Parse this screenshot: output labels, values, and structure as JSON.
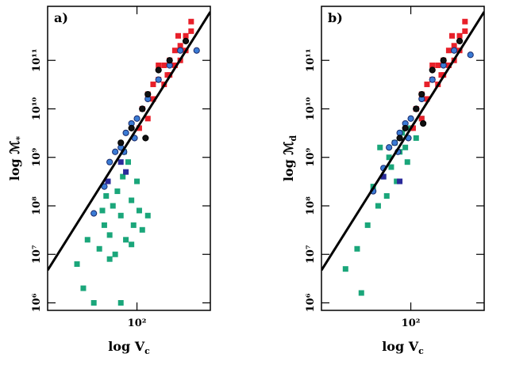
{
  "chart_data": [
    {
      "type": "scatter",
      "panel_label": "a)",
      "xlabel": "log V",
      "xlabel_subscript": "c",
      "ylabel": "log ℳ",
      "ylabel_subscript": "*",
      "xscale": "log",
      "yscale": "log",
      "xlim": [
        15,
        475
      ],
      "ylim": [
        700000,
        1300000000000
      ],
      "xticks": [
        {
          "value": 100,
          "label": "10²"
        }
      ],
      "yticks": [
        {
          "value": 1000000,
          "label": "10⁶"
        },
        {
          "value": 10000000,
          "label": "10⁷"
        },
        {
          "value": 100000000,
          "label": "10⁸"
        },
        {
          "value": 1000000000,
          "label": "10⁹"
        },
        {
          "value": 10000000000,
          "label": "10¹⁰"
        },
        {
          "value": 100000000000,
          "label": "10¹¹"
        }
      ],
      "fit_line": {
        "x": [
          15,
          475
        ],
        "y": [
          4700000,
          1000000000000
        ],
        "color": "#000000"
      },
      "series": [
        {
          "marker": "square",
          "color": "#1aa67a",
          "edgecolor": "#1aa67a",
          "x": [
            28,
            32,
            35,
            40,
            45,
            50,
            52,
            56,
            60,
            63,
            66,
            71,
            74,
            79,
            83,
            89,
            93,
            100,
            105,
            112,
            126,
            76,
            56,
            48,
            71,
            89
          ],
          "y": [
            6300000,
            2000000,
            20000000,
            1000000,
            13000000,
            40000000,
            160000000,
            25000000,
            100000000,
            10000000,
            200000000,
            63000000,
            400000000,
            20000000,
            800000000,
            130000000,
            40000000,
            320000000,
            80000000,
            32000000,
            63000000,
            1300000000,
            8000000,
            80000000,
            1000000,
            16000000
          ]
        },
        {
          "marker": "square",
          "color": "#e8202a",
          "edgecolor": "#e8202a",
          "x": [
            112,
            126,
            141,
            158,
            178,
            200,
            224,
            251,
            282,
            316,
            158,
            200,
            224,
            251,
            178,
            141,
            126,
            282,
            240,
            316,
            105,
            191
          ],
          "y": [
            10000000000,
            20000000000,
            32000000000,
            40000000000,
            79000000000,
            100000000000,
            160000000000,
            200000000000,
            320000000000,
            400000000000,
            79000000000,
            50000000000,
            79000000000,
            100000000000,
            32000000000,
            16000000000,
            6300000000,
            160000000000,
            320000000000,
            630000000000,
            4000000000,
            50000000000
          ]
        },
        {
          "marker": "circle",
          "color": "#3a7bd5",
          "edgecolor": "#1a2a6a",
          "x": [
            40,
            50,
            56,
            63,
            71,
            79,
            89,
            100,
            95,
            112,
            158,
            200,
            251,
            355,
            76,
            126
          ],
          "y": [
            70000000,
            250000000,
            800000000,
            1300000000,
            1600000000,
            3200000000,
            5000000000,
            6300000000,
            2500000000,
            10000000000,
            40000000000,
            79000000000,
            160000000000,
            160000000000,
            1300000000,
            16000000000
          ]
        },
        {
          "marker": "circle",
          "color": "#111111",
          "edgecolor": "#000000",
          "x": [
            71,
            89,
            112,
            126,
            158,
            200,
            282,
            120
          ],
          "y": [
            2000000000,
            4000000000,
            10000000000,
            20000000000,
            63000000000,
            100000000000,
            250000000000,
            2500000000
          ]
        },
        {
          "marker": "square",
          "color": "#2a2a9a",
          "edgecolor": "#2a2a9a",
          "x": [
            54,
            71,
            79
          ],
          "y": [
            320000000,
            800000000,
            500000000
          ]
        }
      ]
    },
    {
      "type": "scatter",
      "panel_label": "b)",
      "xlabel": "log V",
      "xlabel_subscript": "c",
      "ylabel": "log ℳ",
      "ylabel_subscript": "d",
      "xscale": "log",
      "yscale": "log",
      "xlim": [
        15,
        475
      ],
      "ylim": [
        700000,
        1300000000000
      ],
      "xticks": [
        {
          "value": 100,
          "label": "10²"
        }
      ],
      "yticks": [
        {
          "value": 1000000,
          "label": "10⁶"
        },
        {
          "value": 10000000,
          "label": "10⁷"
        },
        {
          "value": 100000000,
          "label": "10⁸"
        },
        {
          "value": 1000000000,
          "label": "10⁹"
        },
        {
          "value": 10000000000,
          "label": "10¹⁰"
        },
        {
          "value": 100000000000,
          "label": "10¹¹"
        }
      ],
      "fit_line": {
        "x": [
          15,
          475
        ],
        "y": [
          4700000,
          1000000000000
        ],
        "color": "#000000"
      },
      "series": [
        {
          "marker": "square",
          "color": "#1aa67a",
          "edgecolor": "#1aa67a",
          "x": [
            25,
            32,
            40,
            45,
            50,
            56,
            60,
            63,
            66,
            71,
            74,
            79,
            83,
            89,
            93,
            100,
            112,
            35,
            52,
            126
          ],
          "y": [
            5000000,
            13000000,
            40000000,
            250000000,
            100000000,
            400000000,
            160000000,
            1000000000,
            630000000,
            2000000000,
            320000000,
            1300000000,
            3200000000,
            1600000000,
            800000000,
            4000000000,
            2500000000,
            1600000,
            1600000000,
            6300000000
          ]
        },
        {
          "marker": "square",
          "color": "#e8202a",
          "edgecolor": "#e8202a",
          "x": [
            112,
            126,
            141,
            158,
            178,
            200,
            224,
            251,
            282,
            316,
            158,
            200,
            224,
            251,
            178,
            141,
            126,
            282,
            240,
            316,
            105,
            191
          ],
          "y": [
            10000000000,
            20000000000,
            32000000000,
            40000000000,
            79000000000,
            100000000000,
            160000000000,
            200000000000,
            320000000000,
            400000000000,
            79000000000,
            50000000000,
            79000000000,
            100000000000,
            32000000000,
            16000000000,
            6300000000,
            160000000000,
            320000000000,
            630000000000,
            4000000000,
            50000000000
          ]
        },
        {
          "marker": "circle",
          "color": "#3a7bd5",
          "edgecolor": "#1a2a6a",
          "x": [
            45,
            56,
            63,
            71,
            79,
            89,
            100,
            95,
            112,
            158,
            200,
            251,
            355,
            76,
            126
          ],
          "y": [
            200000000,
            600000000,
            1600000000,
            2000000000,
            3200000000,
            5000000000,
            6300000000,
            2500000000,
            10000000000,
            40000000000,
            79000000000,
            160000000000,
            130000000000,
            1300000000,
            16000000000
          ]
        },
        {
          "marker": "circle",
          "color": "#111111",
          "edgecolor": "#000000",
          "x": [
            79,
            89,
            112,
            126,
            158,
            200,
            282,
            130
          ],
          "y": [
            2500000000,
            4000000000,
            10000000000,
            20000000000,
            63000000000,
            100000000000,
            250000000000,
            5000000000
          ]
        },
        {
          "marker": "square",
          "color": "#2a2a9a",
          "edgecolor": "#2a2a9a",
          "x": [
            56,
            79
          ],
          "y": [
            400000000,
            320000000
          ]
        }
      ]
    }
  ]
}
